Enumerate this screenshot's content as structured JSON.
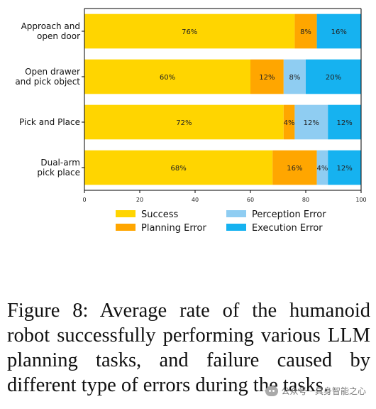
{
  "chart_data": {
    "type": "bar",
    "orientation": "horizontal",
    "stacked": true,
    "categories": [
      [
        "Approach and",
        "open door"
      ],
      [
        "Open drawer",
        "and pick object"
      ],
      [
        "Pick and Place"
      ],
      [
        "Dual-arm",
        "pick place"
      ]
    ],
    "series": [
      {
        "name": "Success",
        "color": "#ffd500",
        "values": [
          76,
          60,
          72,
          68
        ],
        "labels": [
          "76%",
          "60%",
          "72%",
          "68%"
        ]
      },
      {
        "name": "Planning Error",
        "color": "#ffa600",
        "values": [
          8,
          12,
          4,
          16
        ],
        "labels": [
          "8%",
          "12%",
          "4%",
          "16%"
        ]
      },
      {
        "name": "Perception Error",
        "color": "#8fcdf2",
        "values": [
          0,
          8,
          12,
          4
        ],
        "labels": [
          "",
          "8%",
          "12%",
          "4%"
        ]
      },
      {
        "name": "Execution Error",
        "color": "#16b2f0",
        "values": [
          16,
          20,
          12,
          12
        ],
        "labels": [
          "16%",
          "20%",
          "12%",
          "12%"
        ]
      }
    ],
    "xlim": [
      0,
      100
    ],
    "xticks": [
      "0",
      "20",
      "40",
      "60",
      "80",
      "100"
    ],
    "grid": false,
    "legend_position": "bottom"
  },
  "caption": "Figure 8: Average rate of the humanoid robot successfully performing various LLM planning tasks, and failure caused by different type of errors during the tasks.",
  "watermark": {
    "text": "公众号 · 具身智能之心",
    "icon": "wechat-icon"
  }
}
